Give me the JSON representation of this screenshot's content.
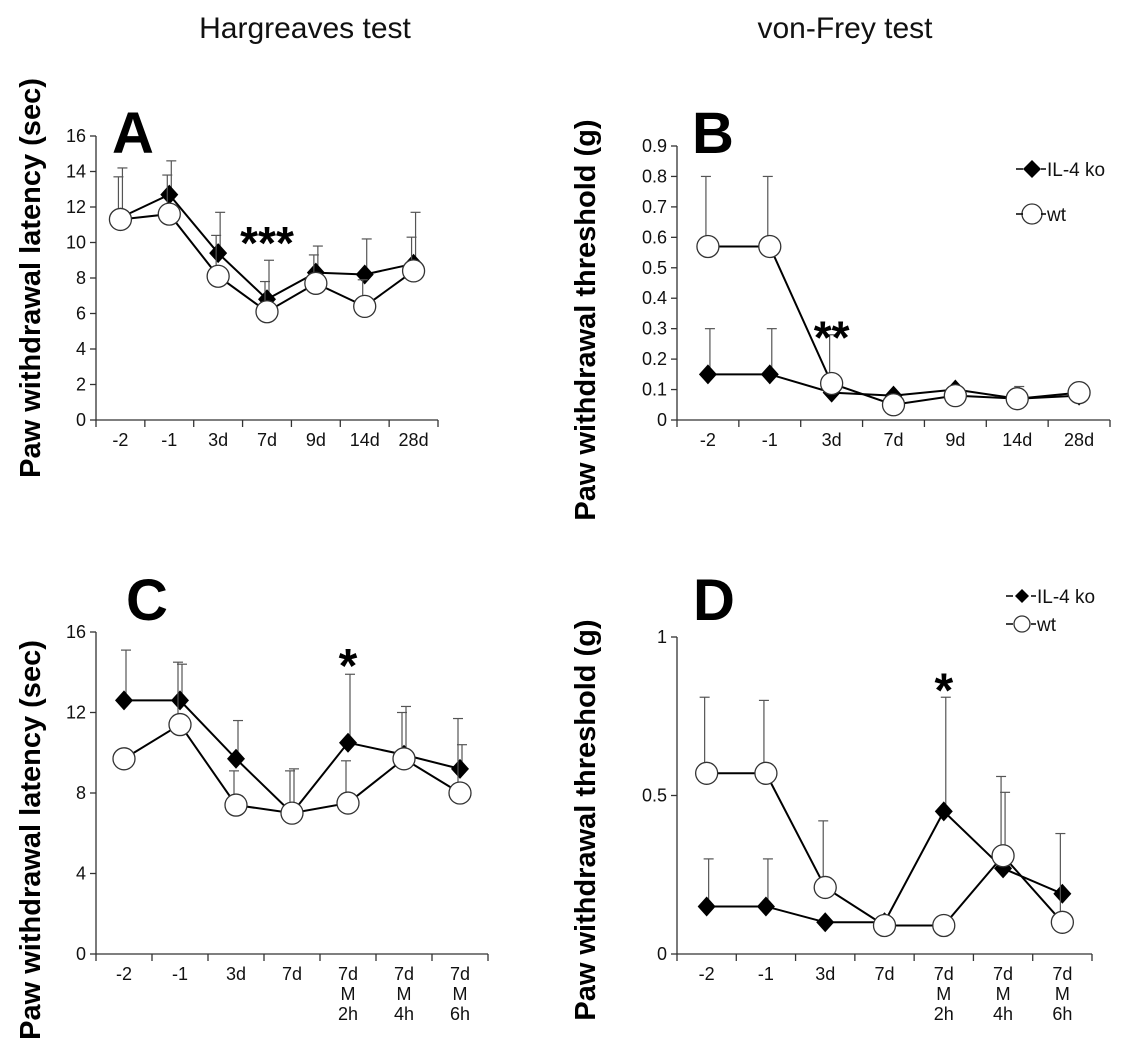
{
  "titles": {
    "left": "Hargreaves test",
    "right": "von-Frey test"
  },
  "chart_data": [
    {
      "panel": "A",
      "type": "line",
      "ylabel": "Paw withdrawal latency (sec)",
      "categories": [
        "-2",
        "-1",
        "3d",
        "7d",
        "9d",
        "14d",
        "28d"
      ],
      "ylim": [
        0,
        16
      ],
      "yticks": [
        0,
        2,
        4,
        6,
        8,
        10,
        12,
        14,
        16
      ],
      "series": [
        {
          "name": "IL-4 ko",
          "marker": "diamond",
          "values": [
            11.4,
            12.7,
            9.4,
            6.8,
            8.3,
            8.2,
            8.8
          ],
          "errors": [
            2.8,
            1.9,
            2.3,
            2.2,
            1.5,
            2.0,
            2.9
          ]
        },
        {
          "name": "wt",
          "marker": "circle",
          "values": [
            11.3,
            11.6,
            8.1,
            6.1,
            7.7,
            6.4,
            8.4
          ],
          "errors": [
            2.4,
            2.2,
            2.3,
            1.7,
            1.6,
            1.5,
            1.9
          ]
        }
      ],
      "annotations": [
        {
          "text": "***",
          "category": "7d",
          "y": 10.3
        }
      ]
    },
    {
      "panel": "B",
      "type": "line",
      "ylabel": "Paw withdrawal threshold (g)",
      "categories": [
        "-2",
        "-1",
        "3d",
        "7d",
        "9d",
        "14d",
        "28d"
      ],
      "ylim": [
        0,
        0.9
      ],
      "yticks": [
        0,
        0.1,
        0.2,
        0.3,
        0.4,
        0.5,
        0.6,
        0.7,
        0.8,
        0.9
      ],
      "legend": {
        "position": "top-right",
        "entries": [
          "IL-4 ko",
          "wt"
        ]
      },
      "series": [
        {
          "name": "IL-4 ko",
          "marker": "diamond",
          "values": [
            0.15,
            0.15,
            0.09,
            0.08,
            0.1,
            0.07,
            0.08
          ],
          "errors": [
            0.15,
            0.15,
            0.0,
            0.0,
            0.0,
            0.04,
            0.0
          ]
        },
        {
          "name": "wt",
          "marker": "circle",
          "values": [
            0.57,
            0.57,
            0.12,
            0.05,
            0.08,
            0.07,
            0.09
          ],
          "errors": [
            0.23,
            0.23,
            0.16,
            0.0,
            0.0,
            0.0,
            0.0
          ]
        }
      ],
      "annotations": [
        {
          "text": "**",
          "category": "3d",
          "y": 0.29
        }
      ]
    },
    {
      "panel": "C",
      "type": "line",
      "ylabel": "Paw withdrawal latency (sec)",
      "categories": [
        "-2",
        "-1",
        "3d",
        "7d",
        "7d M 2h",
        "7d M 4h",
        "7d M 6h"
      ],
      "ylim": [
        0,
        16
      ],
      "yticks": [
        0,
        4,
        8,
        12,
        16
      ],
      "series": [
        {
          "name": "IL-4 ko",
          "marker": "diamond",
          "values": [
            12.6,
            12.6,
            9.7,
            7.0,
            10.5,
            9.9,
            9.2
          ],
          "errors": [
            2.5,
            1.8,
            1.9,
            2.2,
            3.4,
            2.4,
            1.2
          ]
        },
        {
          "name": "wt",
          "marker": "circle",
          "values": [
            9.7,
            11.4,
            7.4,
            7.0,
            7.5,
            9.7,
            8.0
          ],
          "errors": [
            0.0,
            3.1,
            1.7,
            2.1,
            2.1,
            2.3,
            3.7
          ]
        }
      ],
      "annotations": [
        {
          "text": "*",
          "category": "7d M 2h",
          "y": 14.6
        }
      ]
    },
    {
      "panel": "D",
      "type": "line",
      "ylabel": "Paw withdrawal threshold (g)",
      "categories": [
        "-2",
        "-1",
        "3d",
        "7d",
        "7d M 2h",
        "7d M 4h",
        "7d M 6h"
      ],
      "ylim": [
        0,
        1
      ],
      "yticks": [
        0,
        0.5,
        1
      ],
      "legend": {
        "position": "top-right",
        "entries": [
          "IL-4 ko",
          "wt"
        ]
      },
      "series": [
        {
          "name": "IL-4 ko",
          "marker": "diamond",
          "values": [
            0.15,
            0.15,
            0.1,
            0.1,
            0.45,
            0.27,
            0.19
          ],
          "errors": [
            0.15,
            0.15,
            0.0,
            0.0,
            0.36,
            0.24,
            0.0
          ]
        },
        {
          "name": "wt",
          "marker": "circle",
          "values": [
            0.57,
            0.57,
            0.21,
            0.09,
            0.09,
            0.31,
            0.1
          ],
          "errors": [
            0.24,
            0.23,
            0.21,
            0.0,
            0.0,
            0.25,
            0.28
          ]
        }
      ],
      "annotations": [
        {
          "text": "*",
          "category": "7d M 2h",
          "y": 0.85
        }
      ]
    }
  ]
}
